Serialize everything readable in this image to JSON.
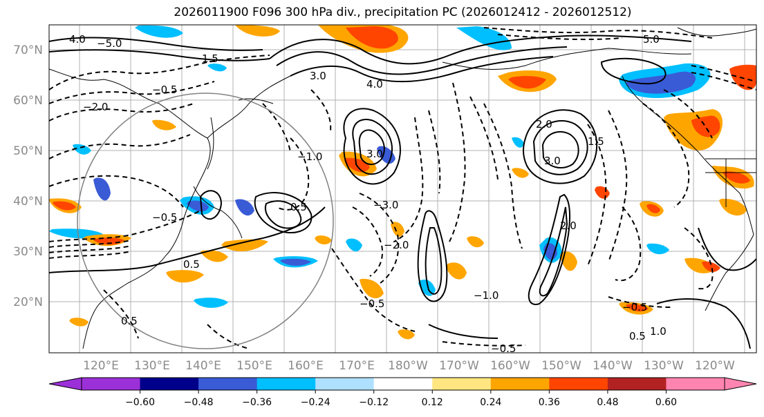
{
  "title": "2026011900 F096 300 hPa div., precipitation PC (2026012412 - 2026012512)",
  "lon_labels": [
    "120°E",
    "130°E",
    "140°E",
    "150°E",
    "160°E",
    "170°E",
    "180°W",
    "170°W",
    "160°W",
    "150°W",
    "140°W",
    "130°W",
    "120°W"
  ],
  "lat_labels": [
    "70°N",
    "60°N",
    "50°N",
    "40°N",
    "30°N",
    "20°N"
  ],
  "colorbar": {
    "colors": [
      "#9b30d9",
      "#00008b",
      "#3a5bd6",
      "#00bfff",
      "#b0e0ff",
      "#ffffff",
      "#ffe680",
      "#ffa500",
      "#ff4500",
      "#b22222",
      "#ff85b0"
    ],
    "tick_labels": [
      "−0.60",
      "−0.48",
      "−0.36",
      "−0.24",
      "−0.12",
      "0.12",
      "0.24",
      "0.36",
      "0.48",
      "0.60"
    ]
  },
  "contour_labels": [
    "4.0",
    "3.0",
    "2.0",
    "1.5",
    "1.0",
    "0.5",
    "−0.5",
    "−1.0",
    "−2.0",
    "−3.0",
    "−5.0",
    "5.0"
  ]
}
